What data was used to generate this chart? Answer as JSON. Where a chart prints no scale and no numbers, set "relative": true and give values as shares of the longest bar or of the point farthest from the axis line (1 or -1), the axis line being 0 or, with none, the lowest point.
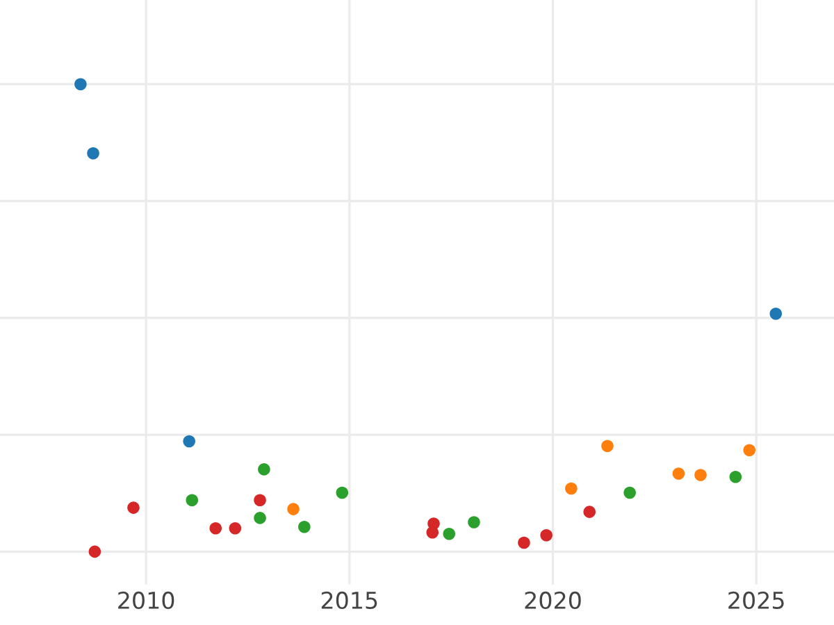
{
  "chart_data": {
    "type": "scatter",
    "relative": true,
    "grid": true,
    "marker": "circle",
    "xlim": [
      2006.41,
      2026.91
    ],
    "xticks": [
      2010,
      2015,
      2020,
      2025
    ],
    "series": [
      {
        "color": "#1f77b4",
        "x": [
          2008.39,
          2008.7,
          2011.06,
          2025.48
        ],
        "values": [
          1.0,
          0.852,
          0.236,
          0.509
        ]
      },
      {
        "color": "#d62728",
        "x": [
          2008.74,
          2009.69,
          2011.71,
          2012.19,
          2012.8,
          2017.04,
          2017.07,
          2019.29,
          2019.84,
          2020.9
        ],
        "values": [
          0.0,
          0.094,
          0.05,
          0.05,
          0.11,
          0.041,
          0.06,
          0.019,
          0.035,
          0.085
        ]
      },
      {
        "color": "#2ca02c",
        "x": [
          2011.13,
          2012.9,
          2012.8,
          2013.89,
          2014.82,
          2017.45,
          2018.06,
          2021.89,
          2024.49
        ],
        "values": [
          0.11,
          0.176,
          0.072,
          0.053,
          0.126,
          0.038,
          0.063,
          0.126,
          0.16
        ]
      },
      {
        "color": "#ff7f0e",
        "x": [
          2013.62,
          2020.45,
          2021.34,
          2023.09,
          2023.63,
          2024.83
        ],
        "values": [
          0.091,
          0.135,
          0.226,
          0.167,
          0.164,
          0.217
        ]
      }
    ]
  }
}
